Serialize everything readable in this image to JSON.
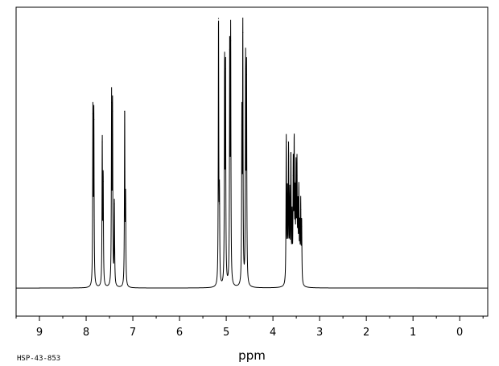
{
  "chart_data": {
    "type": "line",
    "title": "",
    "xlabel": "ppm",
    "ylabel": "",
    "xlim": [
      9.5,
      -0.6
    ],
    "x_reversed": true,
    "ylim": [
      -0.1,
      1.0
    ],
    "baseline": 0.0,
    "grid": false,
    "legend": "none",
    "line_color": "#000000",
    "x_ticks": [
      9,
      8,
      7,
      6,
      5,
      4,
      3,
      2,
      1,
      0
    ],
    "x_minor_step": 0.5,
    "x_range_plotted": [
      9.0,
      2.8
    ],
    "peaks": [
      {
        "ppm": 7.855,
        "height": 0.62
      },
      {
        "ppm": 7.835,
        "height": 0.6
      },
      {
        "ppm": 7.655,
        "height": 0.52
      },
      {
        "ppm": 7.635,
        "height": 0.38
      },
      {
        "ppm": 7.455,
        "height": 0.66
      },
      {
        "ppm": 7.435,
        "height": 0.63
      },
      {
        "ppm": 7.395,
        "height": 0.3
      },
      {
        "ppm": 7.175,
        "height": 0.63
      },
      {
        "ppm": 7.155,
        "height": 0.3
      },
      {
        "ppm": 5.165,
        "height": 0.96
      },
      {
        "ppm": 5.145,
        "height": 0.3
      },
      {
        "ppm": 5.035,
        "height": 0.77
      },
      {
        "ppm": 5.015,
        "height": 0.78
      },
      {
        "ppm": 4.925,
        "height": 0.85
      },
      {
        "ppm": 4.905,
        "height": 0.88
      },
      {
        "ppm": 4.665,
        "height": 0.58
      },
      {
        "ppm": 4.645,
        "height": 0.91
      },
      {
        "ppm": 4.585,
        "height": 0.78
      },
      {
        "ppm": 4.565,
        "height": 0.76
      },
      {
        "ppm": 3.715,
        "height": 0.52
      },
      {
        "ppm": 3.69,
        "height": 0.32
      },
      {
        "ppm": 3.665,
        "height": 0.47
      },
      {
        "ppm": 3.64,
        "height": 0.3
      },
      {
        "ppm": 3.615,
        "height": 0.45
      },
      {
        "ppm": 3.59,
        "height": 0.22
      },
      {
        "ppm": 3.565,
        "height": 0.4
      },
      {
        "ppm": 3.545,
        "height": 0.48
      },
      {
        "ppm": 3.525,
        "height": 0.28
      },
      {
        "ppm": 3.505,
        "height": 0.38
      },
      {
        "ppm": 3.485,
        "height": 0.4
      },
      {
        "ppm": 3.465,
        "height": 0.25
      },
      {
        "ppm": 3.445,
        "height": 0.32
      },
      {
        "ppm": 3.425,
        "height": 0.18
      },
      {
        "ppm": 3.405,
        "height": 0.28
      },
      {
        "ppm": 3.385,
        "height": 0.22
      }
    ]
  },
  "footer_code": "HSP-43-853"
}
